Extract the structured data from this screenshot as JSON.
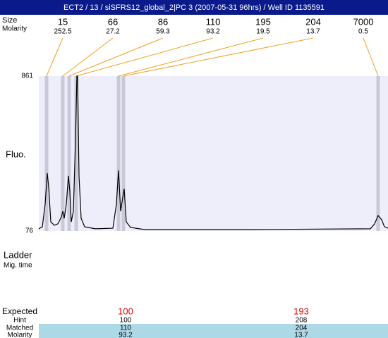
{
  "header": {
    "title": "ECT2 / 13 / siSFRS12_global_2|PC 3 (2007-05-31 96hrs) / Well ID 1135591"
  },
  "peak_table": {
    "size_label": "Size",
    "molarity_label": "Molarity",
    "sizes": [
      15,
      66,
      86,
      110,
      195,
      204,
      7000
    ],
    "molarity": [
      252.5,
      27.2,
      59.3,
      93.2,
      19.5,
      13.7,
      0.5
    ]
  },
  "chart_data": {
    "type": "line",
    "ylabel": "Fluo.",
    "x": [
      0,
      5,
      9,
      12,
      14,
      17,
      22,
      27,
      32,
      34,
      36,
      39,
      42,
      44,
      46,
      49,
      52,
      54,
      55,
      57,
      60,
      65,
      80,
      105,
      110,
      113,
      116,
      119,
      121,
      124,
      130,
      150,
      300,
      470,
      476,
      481,
      486,
      490,
      495
    ],
    "values": [
      87,
      97,
      212,
      369,
      301,
      122,
      105,
      112,
      147,
      176,
      140,
      212,
      355,
      276,
      122,
      176,
      533,
      861,
      861,
      355,
      140,
      97,
      87,
      90,
      212,
      383,
      176,
      247,
      290,
      122,
      94,
      83,
      83,
      87,
      112,
      154,
      133,
      97,
      90
    ],
    "xlim": [
      0,
      495
    ],
    "ylim": [
      76,
      861
    ],
    "yticks": [
      76,
      861
    ],
    "color": "#000000",
    "bands": [
      11,
      34,
      43,
      53,
      113,
      120,
      481
    ],
    "band_color": "#c8c8d8",
    "background": "#eeeefa",
    "connector_color": "#f0a020"
  },
  "ladder": {
    "title": "Ladder",
    "subtitle": "Mig. time",
    "expected": {
      "label": "Expected",
      "values": [
        100,
        193
      ]
    },
    "hint": {
      "label": "Hint",
      "values": [
        100,
        208
      ]
    },
    "matched": {
      "label": "Matched",
      "values": [
        110,
        204
      ]
    },
    "molarity": {
      "label": "Molarity",
      "values": [
        93.2,
        13.7
      ]
    }
  }
}
